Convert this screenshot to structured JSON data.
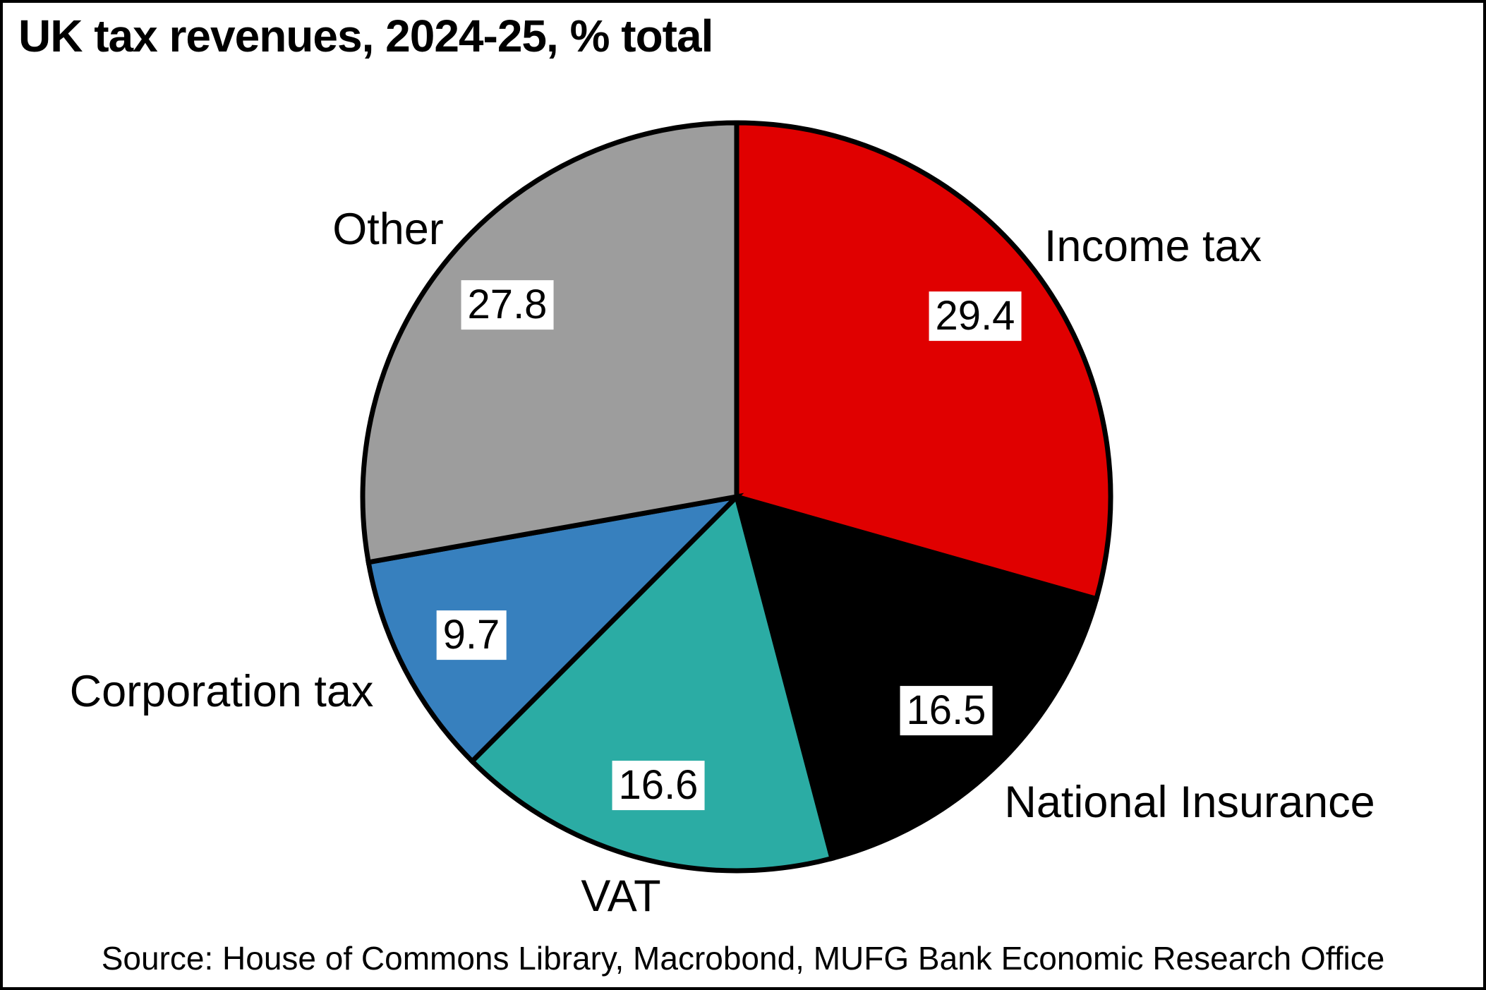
{
  "title": "UK tax revenues, 2024-25, % total",
  "source": "Source: House of Commons Library, Macrobond, MUFG Bank Economic Research Office",
  "chart_data": {
    "type": "pie",
    "title": "UK tax revenues, 2024-25, % total",
    "unit": "% of total",
    "start_angle_deg": 0,
    "direction": "clockwise",
    "slices": [
      {
        "label": "Income tax",
        "value": 29.4,
        "color": "#e00000"
      },
      {
        "label": "National Insurance",
        "value": 16.5,
        "color": "#000000"
      },
      {
        "label": "VAT",
        "value": 16.6,
        "color": "#2baca4"
      },
      {
        "label": "Corporation tax",
        "value": 9.7,
        "color": "#3780be"
      },
      {
        "label": "Other",
        "value": 27.8,
        "color": "#9d9d9d"
      }
    ],
    "outline_color": "#000000",
    "value_label_style": "black text on white box inside slice",
    "legend": "none",
    "source": "Source: House of Commons Library, Macrobond, MUFG Bank Economic Research Office"
  }
}
